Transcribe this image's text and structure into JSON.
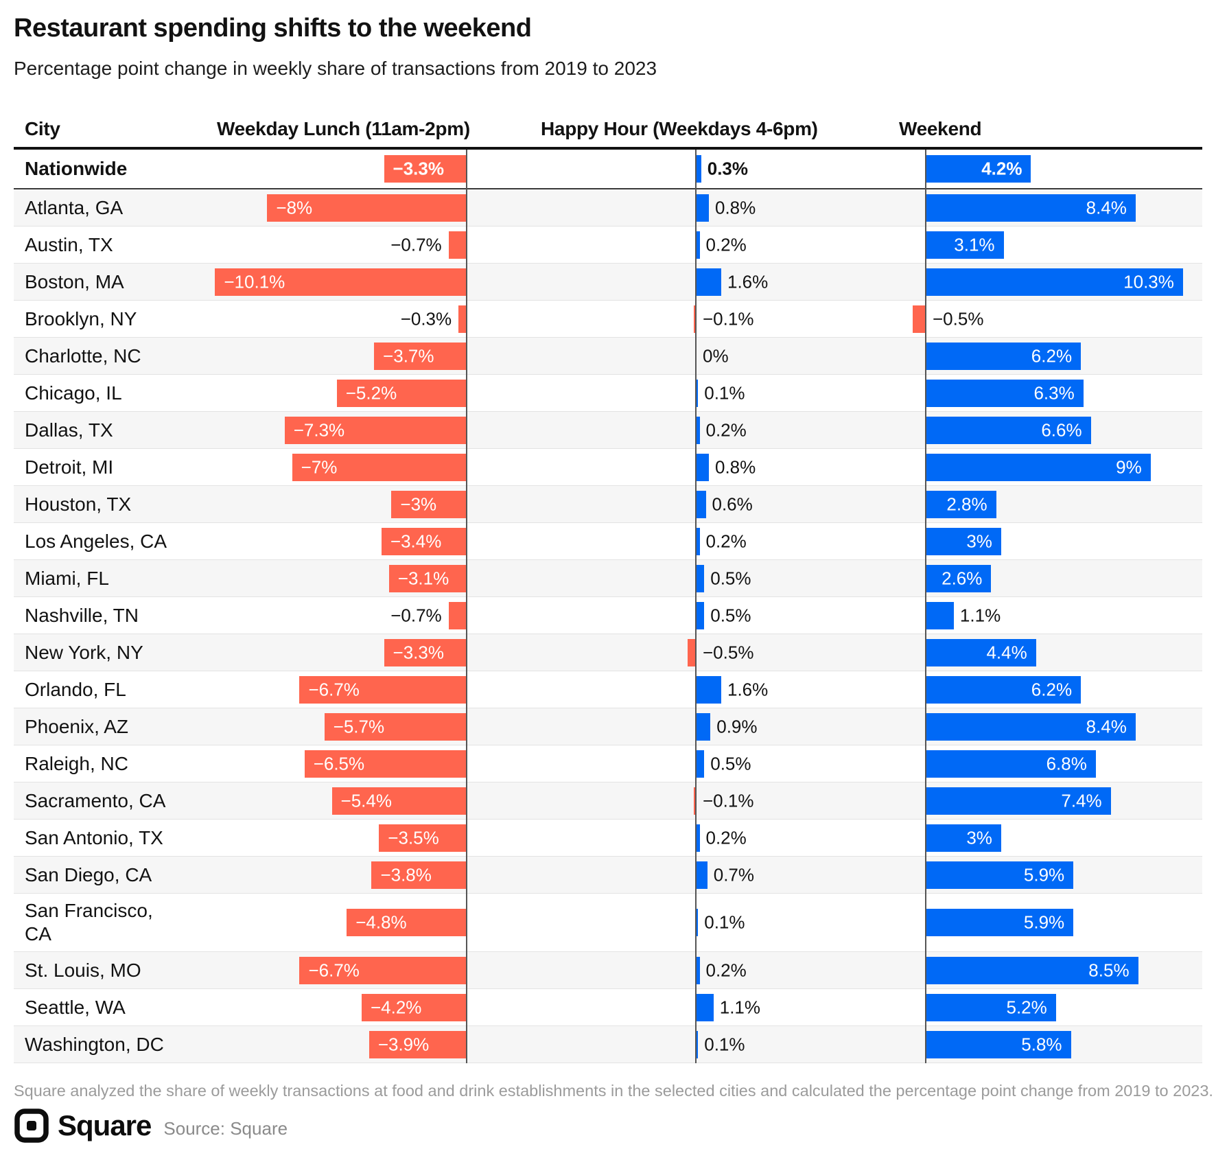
{
  "title": "Restaurant spending shifts to the weekend",
  "subtitle": "Percentage point change in weekly share of transactions from 2019 to 2023",
  "header": {
    "city": "City",
    "lunch": "Weekday Lunch (11am-2pm)",
    "happy_hour": "Happy Hour (Weekdays 4-6pm)",
    "weekend": "Weekend"
  },
  "footnote": "Square analyzed the share of weekly transactions at food and drink establishments in the selected cities and calculated the percentage point change from 2019 to 2023.",
  "brand": {
    "wordmark": "Square",
    "source": "Source: Square"
  },
  "colors": {
    "negative_bar": "#FF654E",
    "positive_bar": "#0069F6",
    "alt_row": "#F6F6F6",
    "axis_line": "#555555",
    "header_rule": "#111111",
    "nationwide_rule": "#3A3A3A",
    "row_rule": "#E3E3E3",
    "text": "#121212",
    "muted_text": "#9B9B9B",
    "bar_label_light": "#FFFFFF"
  },
  "chart_data": {
    "type": "bar",
    "orientation": "horizontal",
    "title": "Restaurant spending shifts to the weekend",
    "subtitle": "Percentage point change in weekly share of transactions from 2019 to 2023",
    "unit": "percentage points, 2019 to 2023",
    "series_labels": [
      "Weekday Lunch (11am-2pm)",
      "Happy Hour (Weekdays 4-6pm)",
      "Weekend"
    ],
    "negative_color_meaning": "decline (red, bars extend left of axis)",
    "positive_color_meaning": "growth (blue, bars extend right of axis)",
    "rows": [
      {
        "city": "Nationwide",
        "bold": true,
        "lunch": -3.3,
        "lunch_label": "−3.3%",
        "happy_hour": 0.3,
        "happy_hour_label": "0.3%",
        "weekend": 4.2,
        "weekend_label": "4.2%"
      },
      {
        "city": "Atlanta, GA",
        "lunch": -8,
        "lunch_label": "−8%",
        "happy_hour": 0.8,
        "happy_hour_label": "0.8%",
        "weekend": 8.4,
        "weekend_label": "8.4%"
      },
      {
        "city": "Austin, TX",
        "lunch": -0.7,
        "lunch_label": "−0.7%",
        "happy_hour": 0.2,
        "happy_hour_label": "0.2%",
        "weekend": 3.1,
        "weekend_label": "3.1%"
      },
      {
        "city": "Boston, MA",
        "lunch": -10.1,
        "lunch_label": "−10.1%",
        "happy_hour": 1.6,
        "happy_hour_label": "1.6%",
        "weekend": 10.3,
        "weekend_label": "10.3%"
      },
      {
        "city": "Brooklyn, NY",
        "lunch": -0.3,
        "lunch_label": "−0.3%",
        "happy_hour": -0.1,
        "happy_hour_label": "−0.1%",
        "weekend": -0.5,
        "weekend_label": "−0.5%"
      },
      {
        "city": "Charlotte, NC",
        "lunch": -3.7,
        "lunch_label": "−3.7%",
        "happy_hour": 0,
        "happy_hour_label": "0%",
        "weekend": 6.2,
        "weekend_label": "6.2%"
      },
      {
        "city": "Chicago, IL",
        "lunch": -5.2,
        "lunch_label": "−5.2%",
        "happy_hour": 0.1,
        "happy_hour_label": "0.1%",
        "weekend": 6.3,
        "weekend_label": "6.3%"
      },
      {
        "city": "Dallas, TX",
        "lunch": -7.3,
        "lunch_label": "−7.3%",
        "happy_hour": 0.2,
        "happy_hour_label": "0.2%",
        "weekend": 6.6,
        "weekend_label": "6.6%"
      },
      {
        "city": "Detroit, MI",
        "lunch": -7,
        "lunch_label": "−7%",
        "happy_hour": 0.8,
        "happy_hour_label": "0.8%",
        "weekend": 9,
        "weekend_label": "9%"
      },
      {
        "city": "Houston, TX",
        "lunch": -3,
        "lunch_label": "−3%",
        "happy_hour": 0.6,
        "happy_hour_label": "0.6%",
        "weekend": 2.8,
        "weekend_label": "2.8%"
      },
      {
        "city": "Los Angeles, CA",
        "lunch": -3.4,
        "lunch_label": "−3.4%",
        "happy_hour": 0.2,
        "happy_hour_label": "0.2%",
        "weekend": 3,
        "weekend_label": "3%"
      },
      {
        "city": "Miami, FL",
        "lunch": -3.1,
        "lunch_label": "−3.1%",
        "happy_hour": 0.5,
        "happy_hour_label": "0.5%",
        "weekend": 2.6,
        "weekend_label": "2.6%"
      },
      {
        "city": "Nashville, TN",
        "lunch": -0.7,
        "lunch_label": "−0.7%",
        "happy_hour": 0.5,
        "happy_hour_label": "0.5%",
        "weekend": 1.1,
        "weekend_label": "1.1%"
      },
      {
        "city": "New York, NY",
        "lunch": -3.3,
        "lunch_label": "−3.3%",
        "happy_hour": -0.5,
        "happy_hour_label": "−0.5%",
        "weekend": 4.4,
        "weekend_label": "4.4%"
      },
      {
        "city": "Orlando, FL",
        "lunch": -6.7,
        "lunch_label": "−6.7%",
        "happy_hour": 1.6,
        "happy_hour_label": "1.6%",
        "weekend": 6.2,
        "weekend_label": "6.2%"
      },
      {
        "city": "Phoenix, AZ",
        "lunch": -5.7,
        "lunch_label": "−5.7%",
        "happy_hour": 0.9,
        "happy_hour_label": "0.9%",
        "weekend": 8.4,
        "weekend_label": "8.4%"
      },
      {
        "city": "Raleigh, NC",
        "lunch": -6.5,
        "lunch_label": "−6.5%",
        "happy_hour": 0.5,
        "happy_hour_label": "0.5%",
        "weekend": 6.8,
        "weekend_label": "6.8%"
      },
      {
        "city": "Sacramento, CA",
        "lunch": -5.4,
        "lunch_label": "−5.4%",
        "happy_hour": -0.1,
        "happy_hour_label": "−0.1%",
        "weekend": 7.4,
        "weekend_label": "7.4%"
      },
      {
        "city": "San Antonio, TX",
        "lunch": -3.5,
        "lunch_label": "−3.5%",
        "happy_hour": 0.2,
        "happy_hour_label": "0.2%",
        "weekend": 3,
        "weekend_label": "3%"
      },
      {
        "city": "San Diego, CA",
        "lunch": -3.8,
        "lunch_label": "−3.8%",
        "happy_hour": 0.7,
        "happy_hour_label": "0.7%",
        "weekend": 5.9,
        "weekend_label": "5.9%"
      },
      {
        "city": "San Francisco,\nCA",
        "tall": true,
        "lunch": -4.8,
        "lunch_label": "−4.8%",
        "happy_hour": 0.1,
        "happy_hour_label": "0.1%",
        "weekend": 5.9,
        "weekend_label": "5.9%"
      },
      {
        "city": "St. Louis, MO",
        "lunch": -6.7,
        "lunch_label": "−6.7%",
        "happy_hour": 0.2,
        "happy_hour_label": "0.2%",
        "weekend": 8.5,
        "weekend_label": "8.5%"
      },
      {
        "city": "Seattle, WA",
        "lunch": -4.2,
        "lunch_label": "−4.2%",
        "happy_hour": 1.1,
        "happy_hour_label": "1.1%",
        "weekend": 5.2,
        "weekend_label": "5.2%"
      },
      {
        "city": "Washington, DC",
        "lunch": -3.9,
        "lunch_label": "−3.9%",
        "happy_hour": 0.1,
        "happy_hour_label": "0.1%",
        "weekend": 5.8,
        "weekend_label": "5.8%"
      }
    ]
  }
}
